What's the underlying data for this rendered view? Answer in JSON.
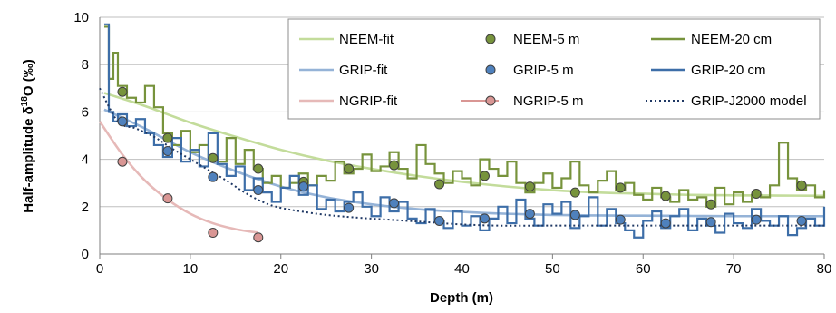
{
  "chart_data": {
    "type": "line",
    "title": "",
    "xlabel": "Depth (m)",
    "ylabel": {
      "prefix": "Half-amplitude δ",
      "sup": "18",
      "suffix": "O (‰)"
    },
    "xlim": [
      0,
      80
    ],
    "ylim": [
      0,
      10
    ],
    "x_ticks": [
      0,
      10,
      20,
      30,
      40,
      50,
      60,
      70,
      80
    ],
    "y_ticks": [
      0,
      2,
      4,
      6,
      8,
      10
    ],
    "grid": "horizontal",
    "legend_position": "top-right",
    "legend": [
      {
        "label": "NEEM-fit",
        "kind": "line",
        "color": "#c3dc9b"
      },
      {
        "label": "NEEM-5 m",
        "kind": "marker",
        "color": "#77933c"
      },
      {
        "label": "NEEM-20 cm",
        "kind": "line",
        "color": "#77933c"
      },
      {
        "label": "GRIP-fit",
        "kind": "line",
        "color": "#95b3d7"
      },
      {
        "label": "GRIP-5 m",
        "kind": "marker",
        "color": "#4f81bd"
      },
      {
        "label": "GRIP-20 cm",
        "kind": "line",
        "color": "#3d6ea8"
      },
      {
        "label": "NGRIP-fit",
        "kind": "line",
        "color": "#e6b9b8"
      },
      {
        "label": "NGRIP-5 m",
        "kind": "marker",
        "color": "#d99694"
      },
      {
        "label": "GRIP-J2000 model",
        "kind": "dotted",
        "color": "#1f3864"
      }
    ],
    "series": [
      {
        "name": "NEEM-fit",
        "kind": "fit",
        "color": "#c3dc9b",
        "x": [
          0.5,
          5,
          10,
          15,
          20,
          25,
          30,
          35,
          40,
          45,
          50,
          55,
          60,
          65,
          70,
          75,
          80
        ],
        "y": [
          6.8,
          6.25,
          5.55,
          4.95,
          4.4,
          3.95,
          3.6,
          3.3,
          3.05,
          2.85,
          2.7,
          2.6,
          2.55,
          2.5,
          2.48,
          2.47,
          2.46
        ]
      },
      {
        "name": "NEEM-5 m",
        "kind": "points",
        "color": "#77933c",
        "x": [
          2.5,
          7.5,
          12.5,
          17.5,
          22.5,
          27.5,
          32.5,
          37.5,
          42.5,
          47.5,
          52.5,
          57.5,
          62.5,
          67.5,
          72.5,
          77.5
        ],
        "y": [
          6.85,
          4.9,
          4.05,
          3.6,
          3.05,
          3.6,
          3.75,
          2.95,
          3.3,
          2.85,
          2.6,
          2.8,
          2.45,
          2.1,
          2.55,
          2.9
        ]
      },
      {
        "name": "NEEM-20 cm",
        "kind": "step",
        "color": "#77933c",
        "x": [
          0.5,
          1,
          1.5,
          2,
          3,
          4,
          5,
          6,
          7,
          8,
          9,
          10,
          11,
          12,
          13,
          14,
          15,
          16,
          17,
          18,
          19,
          20,
          21,
          22,
          23,
          24,
          25,
          26,
          27,
          28,
          29,
          30,
          31,
          32,
          33,
          34,
          35,
          36,
          37,
          38,
          39,
          40,
          41,
          42,
          43,
          44,
          45,
          46,
          47,
          48,
          49,
          50,
          51,
          52,
          53,
          54,
          55,
          56,
          57,
          58,
          59,
          60,
          61,
          62,
          63,
          64,
          65,
          66,
          67,
          68,
          69,
          70,
          71,
          72,
          73,
          74,
          75,
          76,
          77,
          78,
          79,
          80
        ],
        "y": [
          9.6,
          7.4,
          8.5,
          7.1,
          6.6,
          6.4,
          7.1,
          6.2,
          5.1,
          4.6,
          5.2,
          4.3,
          4.6,
          4.1,
          3.9,
          4.9,
          3.8,
          4.4,
          3.6,
          3.0,
          3.3,
          2.8,
          3.0,
          3.4,
          2.9,
          3.3,
          3.1,
          3.9,
          3.4,
          3.6,
          4.2,
          3.5,
          3.7,
          4.3,
          3.6,
          3.2,
          4.6,
          3.8,
          3.4,
          3.0,
          3.5,
          3.2,
          2.9,
          4.0,
          3.6,
          3.3,
          3.9,
          3.0,
          2.6,
          3.0,
          3.4,
          2.8,
          3.2,
          3.9,
          2.9,
          2.6,
          3.1,
          3.5,
          2.7,
          3.0,
          2.5,
          2.3,
          2.8,
          2.4,
          2.2,
          2.7,
          2.3,
          2.4,
          2.0,
          2.8,
          2.1,
          2.6,
          2.2,
          2.5,
          2.4,
          2.9,
          4.7,
          3.2,
          2.7,
          2.9,
          2.4,
          2.7
        ]
      },
      {
        "name": "GRIP-fit",
        "kind": "fit",
        "color": "#95b3d7",
        "x": [
          0.5,
          5,
          10,
          15,
          20,
          25,
          30,
          35,
          40,
          45,
          50,
          55,
          60,
          65,
          70,
          75,
          80
        ],
        "y": [
          6.1,
          5.3,
          4.3,
          3.5,
          2.85,
          2.4,
          2.1,
          1.9,
          1.78,
          1.7,
          1.65,
          1.63,
          1.62,
          1.61,
          1.6,
          1.6,
          1.6
        ]
      },
      {
        "name": "GRIP-5 m",
        "kind": "points",
        "color": "#4f81bd",
        "x": [
          2.5,
          7.5,
          12.5,
          17.5,
          22.5,
          27.5,
          32.5,
          37.5,
          42.5,
          47.5,
          52.5,
          57.5,
          62.5,
          67.5,
          72.5,
          77.5
        ],
        "y": [
          5.6,
          4.35,
          3.25,
          2.7,
          2.85,
          1.95,
          2.15,
          1.4,
          1.5,
          1.7,
          1.65,
          1.45,
          1.3,
          1.35,
          1.45,
          1.4
        ]
      },
      {
        "name": "GRIP-20 cm",
        "kind": "step",
        "color": "#3d6ea8",
        "x": [
          0.5,
          1,
          1.5,
          2,
          3,
          4,
          5,
          6,
          7,
          8,
          9,
          10,
          11,
          12,
          13,
          14,
          15,
          16,
          17,
          18,
          19,
          20,
          21,
          22,
          23,
          24,
          25,
          26,
          27,
          28,
          29,
          30,
          31,
          32,
          33,
          34,
          35,
          36,
          37,
          38,
          39,
          40,
          41,
          42,
          43,
          44,
          45,
          46,
          47,
          48,
          49,
          50,
          51,
          52,
          53,
          54,
          55,
          56,
          57,
          58,
          59,
          60,
          61,
          62,
          63,
          64,
          65,
          66,
          67,
          68,
          69,
          70,
          71,
          72,
          73,
          74,
          75,
          76,
          77,
          78,
          79,
          80
        ],
        "y": [
          9.7,
          6.0,
          5.6,
          5.9,
          5.4,
          5.7,
          5.1,
          4.6,
          4.1,
          4.9,
          3.9,
          4.4,
          3.7,
          5.1,
          3.8,
          3.3,
          3.7,
          2.7,
          3.2,
          2.6,
          2.2,
          2.8,
          3.3,
          2.5,
          2.9,
          1.9,
          2.3,
          1.8,
          2.2,
          2.6,
          2.0,
          1.6,
          2.4,
          1.8,
          2.2,
          1.5,
          1.3,
          1.9,
          1.4,
          1.1,
          1.8,
          1.2,
          1.6,
          1.0,
          1.5,
          2.0,
          1.3,
          2.3,
          1.5,
          1.2,
          2.1,
          1.7,
          2.2,
          1.1,
          1.6,
          2.4,
          1.2,
          1.9,
          1.3,
          1.0,
          0.7,
          1.4,
          1.8,
          1.1,
          1.6,
          1.9,
          1.0,
          1.5,
          1.2,
          0.9,
          1.7,
          1.3,
          1.1,
          1.9,
          1.4,
          1.2,
          1.6,
          0.8,
          1.1,
          1.5,
          1.2,
          2.0
        ]
      },
      {
        "name": "NGRIP-fit",
        "kind": "fit",
        "color": "#e6b9b8",
        "x": [
          0,
          2.5,
          5,
          7.5,
          10,
          12.5,
          15,
          17.5
        ],
        "y": [
          5.6,
          4.2,
          3.1,
          2.3,
          1.7,
          1.3,
          1.05,
          0.9
        ]
      },
      {
        "name": "NGRIP-5 m",
        "kind": "points",
        "color": "#d99694",
        "x": [
          2.5,
          7.5,
          12.5,
          17.5
        ],
        "y": [
          3.9,
          2.35,
          0.9,
          0.7
        ]
      },
      {
        "name": "GRIP-J2000 model",
        "kind": "dotted",
        "color": "#1f3864",
        "x": [
          0,
          2,
          4,
          6,
          8,
          10,
          12,
          14,
          16,
          18,
          20,
          24,
          28,
          32,
          36,
          40,
          44,
          48,
          52,
          56,
          60,
          64,
          68,
          72,
          76,
          80
        ],
        "y": [
          7.0,
          5.6,
          5.3,
          4.95,
          4.45,
          4.0,
          3.55,
          3.1,
          2.6,
          2.2,
          1.95,
          1.7,
          1.55,
          1.45,
          1.35,
          1.25,
          1.2,
          1.2,
          1.2,
          1.2,
          1.2,
          1.2,
          1.2,
          1.2,
          1.2,
          1.2
        ]
      }
    ]
  }
}
